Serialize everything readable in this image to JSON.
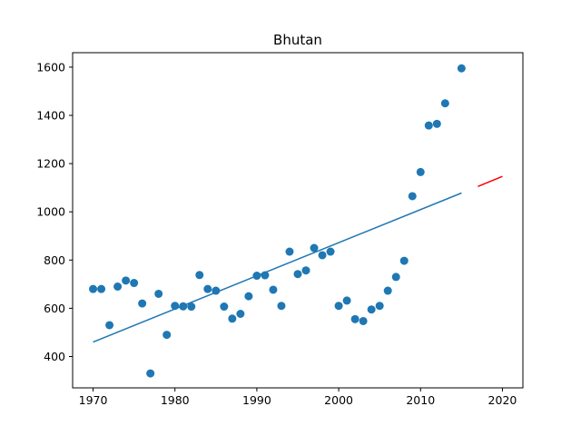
{
  "chart_data": {
    "type": "scatter",
    "title": "Bhutan",
    "xlabel": "",
    "ylabel": "",
    "xlim": [
      1967.5,
      2022.5
    ],
    "ylim": [
      270,
      1660
    ],
    "grid": false,
    "xticks": [
      "1970",
      "1980",
      "1990",
      "2000",
      "2010",
      "2020"
    ],
    "yticks": [
      "400",
      "600",
      "800",
      "1000",
      "1200",
      "1400",
      "1600"
    ],
    "points": {
      "x": [
        1970,
        1971,
        1972,
        1973,
        1974,
        1975,
        1976,
        1977,
        1978,
        1979,
        1980,
        1981,
        1982,
        1983,
        1984,
        1985,
        1986,
        1987,
        1988,
        1989,
        1990,
        1991,
        1992,
        1993,
        1994,
        1995,
        1996,
        1997,
        1998,
        1999,
        2000,
        2001,
        2002,
        2003,
        2004,
        2005,
        2006,
        2007,
        2008,
        2009,
        2010,
        2011,
        2012,
        2013,
        2015
      ],
      "y": [
        680,
        680,
        530,
        690,
        715,
        705,
        620,
        330,
        660,
        490,
        610,
        608,
        607,
        738,
        680,
        673,
        607,
        557,
        577,
        650,
        735,
        737,
        677,
        610,
        835,
        742,
        757,
        850,
        820,
        835,
        610,
        632,
        555,
        547,
        595,
        610,
        673,
        730,
        797,
        1065,
        1165,
        1358,
        1365,
        1450,
        1595
      ],
      "color": "#1f77b4"
    },
    "trend_line": {
      "x": [
        1970,
        2015
      ],
      "y": [
        460,
        1078
      ],
      "color": "#1f77b4"
    },
    "projection_line": {
      "x": [
        2017,
        2020
      ],
      "y": [
        1105,
        1147
      ],
      "color": "#ff0000"
    }
  }
}
